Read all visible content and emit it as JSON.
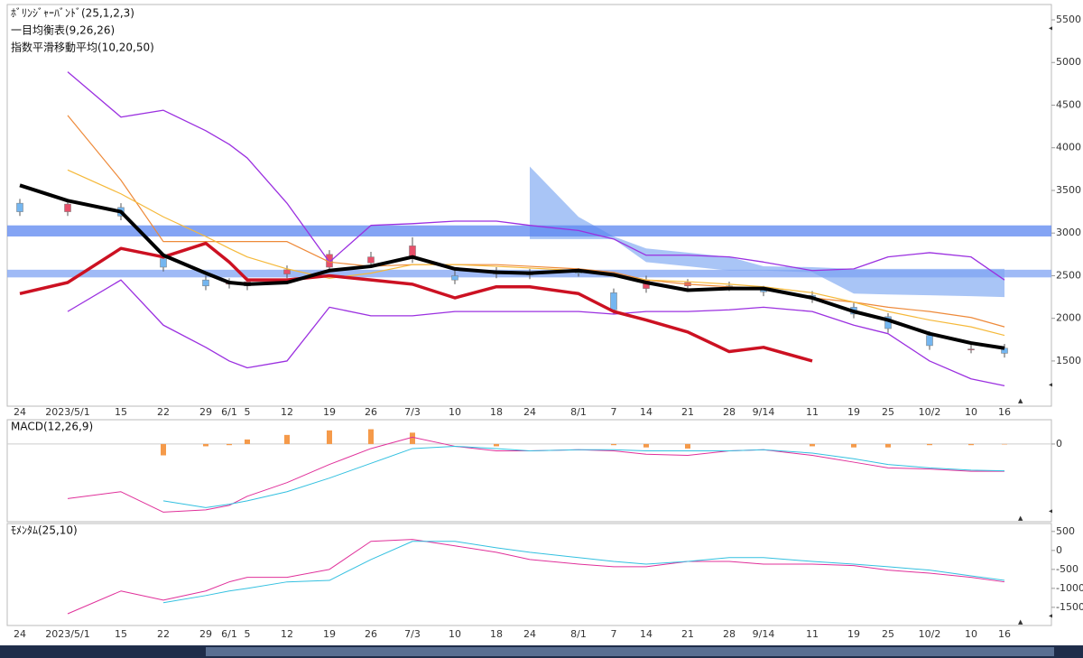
{
  "chart_data": [
    {
      "type": "candlestick",
      "indicators": [
        "ﾎﾞﾘﾝｼﾞｬｰﾊﾞﾝﾄﾞ(25,1,2,3)",
        "一目均衡表(9,26,26)",
        "指数平滑移動平均(10,20,50)"
      ],
      "categories": [
        "24",
        "2023/5/1",
        "15",
        "22",
        "29",
        "6/1",
        "5",
        "12",
        "19",
        "26",
        "7/3",
        "10",
        "18",
        "24",
        "8/1",
        "7",
        "14",
        "21",
        "28",
        "9/14",
        "11",
        "19",
        "25",
        "10/2",
        "10",
        "16"
      ],
      "open": [
        3350,
        3250,
        3300,
        2700,
        2450,
        2400,
        2380,
        2520,
        2600,
        2650,
        2700,
        2500,
        2560,
        2520,
        2540,
        2300,
        2350,
        2380,
        2380,
        2330,
        2270,
        2130,
        2020,
        1800,
        1640,
        1650
      ],
      "high": [
        3400,
        3400,
        3350,
        2760,
        2500,
        2470,
        2480,
        2620,
        2800,
        2780,
        2950,
        2560,
        2600,
        2580,
        2590,
        2350,
        2500,
        2460,
        2430,
        2380,
        2320,
        2180,
        2060,
        1850,
        1700,
        1700
      ],
      "low": [
        3200,
        3200,
        3150,
        2550,
        2330,
        2350,
        2330,
        2470,
        2550,
        2600,
        2650,
        2400,
        2470,
        2460,
        2490,
        2050,
        2300,
        2330,
        2320,
        2260,
        2180,
        2000,
        1830,
        1630,
        1590,
        1540
      ],
      "close": [
        3250,
        3340,
        3200,
        2600,
        2380,
        2420,
        2430,
        2570,
        2750,
        2720,
        2850,
        2450,
        2520,
        2510,
        2530,
        2100,
        2450,
        2420,
        2360,
        2310,
        2230,
        2050,
        1880,
        1680,
        1640,
        1590
      ],
      "up_color": "#e8506a",
      "down_color": "#74b6f0",
      "cloud": {
        "color": "#6f9ff0",
        "upper": [
          null,
          null,
          null,
          null,
          null,
          null,
          null,
          null,
          null,
          null,
          null,
          null,
          null,
          3780,
          3190,
          2960,
          2820,
          2770,
          2720,
          2610,
          2600,
          2580,
          2580,
          2580,
          2580,
          2580
        ],
        "lower": [
          null,
          null,
          null,
          null,
          null,
          null,
          null,
          null,
          null,
          null,
          null,
          null,
          null,
          2930,
          2930,
          2930,
          2660,
          2610,
          2560,
          2560,
          2540,
          2290,
          2280,
          2270,
          2260,
          2250
        ]
      },
      "bands": [
        {
          "from": 2960,
          "to": 3090,
          "color": "#5b86f0"
        },
        {
          "from": 2480,
          "to": 2570,
          "color": "#7fa3f3"
        }
      ],
      "series": [
        {
          "color": "#9b30e0",
          "width": 1.3,
          "values": [
            null,
            4890,
            4360,
            4440,
            4200,
            4040,
            3880,
            3350,
            2660,
            3090,
            3110,
            3140,
            3140,
            3090,
            3030,
            2930,
            2740,
            2740,
            2720,
            2660,
            2560,
            2580,
            2720,
            2770,
            2720,
            2450
          ]
        },
        {
          "color": "#9b30e0",
          "width": 1.3,
          "values": [
            null,
            2080,
            2450,
            1920,
            1660,
            1500,
            1420,
            1500,
            2130,
            2030,
            2030,
            2080,
            2080,
            2080,
            2080,
            2050,
            2080,
            2080,
            2100,
            2130,
            2080,
            1920,
            1820,
            1500,
            1290,
            1210
          ]
        },
        {
          "color": "#ee8a3a",
          "width": 1.2,
          "values": [
            null,
            4380,
            3620,
            2900,
            2900,
            2900,
            2900,
            2900,
            2660,
            2610,
            2630,
            2630,
            2630,
            2610,
            2580,
            2540,
            2450,
            2400,
            2370,
            2350,
            2240,
            2190,
            2130,
            2080,
            2010,
            1900
          ]
        },
        {
          "color": "#f5b93a",
          "width": 1.2,
          "values": [
            null,
            3740,
            3460,
            3190,
            2960,
            2820,
            2720,
            2580,
            2470,
            2530,
            2630,
            2630,
            2610,
            2590,
            2560,
            2510,
            2450,
            2430,
            2400,
            2370,
            2300,
            2190,
            2080,
            1980,
            1900,
            1800
          ]
        },
        {
          "color": "#cc1122",
          "width": 3.5,
          "values": [
            2290,
            2420,
            2820,
            2720,
            2880,
            2660,
            2450,
            2450,
            2500,
            2450,
            2400,
            2240,
            2370,
            2370,
            2290,
            2080,
            1980,
            1840,
            1610,
            1660,
            1500,
            null,
            null,
            null,
            null,
            null
          ]
        },
        {
          "color": "#000000",
          "width": 4,
          "values": [
            3560,
            3380,
            3250,
            2740,
            2530,
            2420,
            2400,
            2420,
            2560,
            2610,
            2720,
            2580,
            2540,
            2530,
            2560,
            2510,
            2420,
            2330,
            2350,
            2350,
            2240,
            2080,
            1980,
            1820,
            1710,
            1650
          ]
        }
      ],
      "ylim": [
        970,
        5680
      ],
      "yticks": [
        1500,
        2000,
        2500,
        3000,
        3500,
        4000,
        4500,
        5000,
        5500
      ]
    },
    {
      "type": "macd",
      "title": "MACD(12,26,9)",
      "hist_color": "#f59a4a",
      "hist": [
        null,
        null,
        null,
        -50,
        -10,
        -5,
        20,
        40,
        60,
        65,
        50,
        0,
        -10,
        0,
        0,
        -5,
        -15,
        -20,
        0,
        0,
        -10,
        -15,
        -15,
        -5,
        -5,
        -2
      ],
      "series": [
        {
          "color": "#e0309a",
          "width": 1,
          "values": [
            null,
            -240,
            -210,
            -300,
            -290,
            -270,
            -230,
            -170,
            -90,
            -20,
            30,
            -10,
            -30,
            -30,
            -25,
            -30,
            -45,
            -50,
            -30,
            -25,
            -50,
            -80,
            -105,
            -110,
            -120,
            -120
          ]
        },
        {
          "color": "#33c0e0",
          "width": 1,
          "values": [
            null,
            null,
            null,
            -250,
            -280,
            -265,
            -250,
            -210,
            -150,
            -85,
            -20,
            -10,
            -20,
            -30,
            -25,
            -25,
            -30,
            -30,
            -30,
            -25,
            -40,
            -65,
            -90,
            -105,
            -115,
            -118
          ]
        }
      ],
      "ylim": [
        -342,
        107
      ],
      "yticks": [
        0
      ]
    },
    {
      "type": "momentum",
      "title": "ﾓﾒﾝﾀﾑ(25,10)",
      "series": [
        {
          "color": "#e0309a",
          "width": 1,
          "values": [
            null,
            -1670,
            -1070,
            -1310,
            -1070,
            -830,
            -710,
            -710,
            -500,
            240,
            290,
            120,
            -50,
            -240,
            -360,
            -430,
            -430,
            -290,
            -290,
            -360,
            -360,
            -400,
            -520,
            -600,
            -710,
            -830
          ]
        },
        {
          "color": "#33c0e0",
          "width": 1,
          "values": [
            null,
            null,
            null,
            -1380,
            -1190,
            -1070,
            -1000,
            -830,
            -790,
            -240,
            240,
            240,
            70,
            -50,
            -190,
            -290,
            -360,
            -290,
            -190,
            -190,
            -290,
            -360,
            -430,
            -520,
            -670,
            -790
          ]
        }
      ],
      "ylim": [
        -1980,
        710
      ],
      "yticks": [
        -1500,
        -1000,
        -500,
        0,
        500
      ]
    }
  ]
}
